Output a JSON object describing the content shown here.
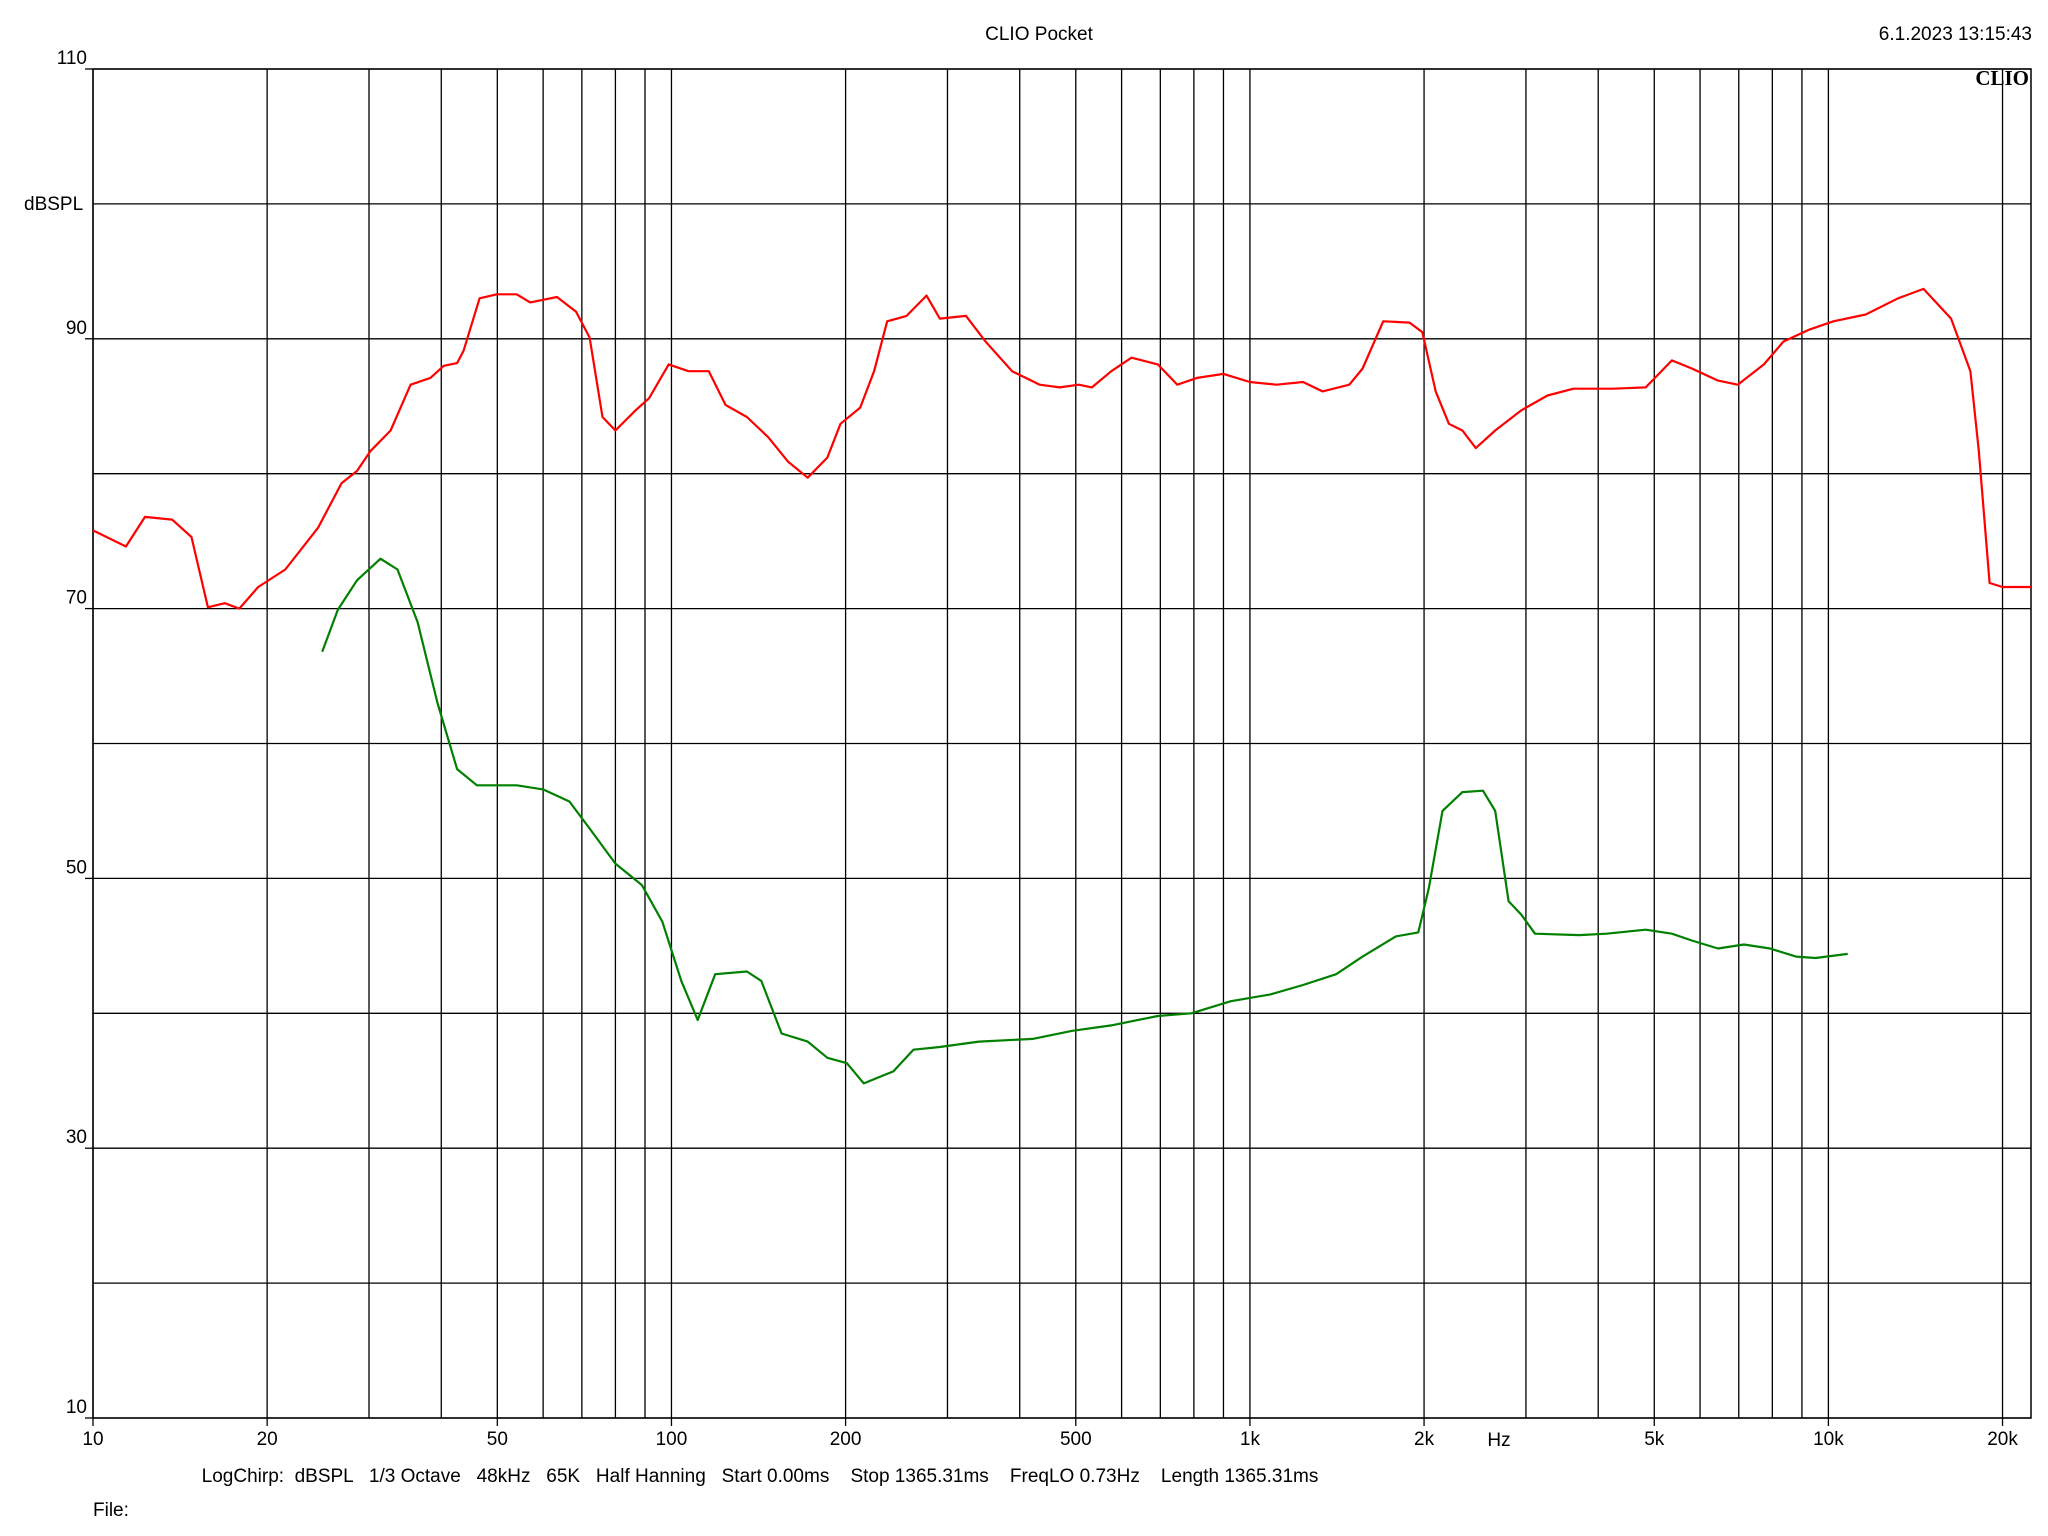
{
  "chart_data": {
    "type": "line",
    "title": "CLIO Pocket",
    "timestamp": "6.1.2023 13:15:43",
    "logo": "CLIO",
    "ylabel": "dBSPL",
    "xlabel": "Hz",
    "footer": "LogChirp:  dBSPL   1/3 Octave   48kHz   65K   Half Hanning   Start 0.00ms    Stop 1365.31ms    FreqLO 0.73Hz    Length 1365.31ms",
    "file_label": "File:",
    "xscale": "log",
    "xlim": [
      10,
      22400
    ],
    "ylim": [
      10,
      110
    ],
    "xticks": [
      10,
      20,
      50,
      100,
      200,
      500,
      {
        "value": 1000,
        "label": "1k"
      },
      {
        "value": 2000,
        "label": "2k"
      },
      {
        "value": 5000,
        "label": "5k"
      },
      {
        "value": 10000,
        "label": "10k"
      },
      {
        "value": 20000,
        "label": "20k"
      }
    ],
    "yticks": [
      10,
      30,
      50,
      70,
      90,
      110
    ],
    "xgrid": [
      10,
      20,
      30,
      40,
      50,
      60,
      70,
      80,
      90,
      100,
      200,
      300,
      400,
      500,
      600,
      700,
      800,
      900,
      1000,
      2000,
      3000,
      4000,
      5000,
      6000,
      7000,
      8000,
      9000,
      10000,
      20000
    ],
    "ygrid": [
      10,
      20,
      30,
      40,
      50,
      60,
      70,
      80,
      90,
      100,
      110
    ],
    "grid": true,
    "series": [
      {
        "color": "#ff0000",
        "x": [
          10,
          11.4,
          12.3,
          13.7,
          14.8,
          15.8,
          16.9,
          17.9,
          19.3,
          21.5,
          24.5,
          26.9,
          28.6,
          30.2,
          32.7,
          35.4,
          38.3,
          40.4,
          42.6,
          43.7,
          46.6,
          49.9,
          54,
          57,
          63.4,
          68.4,
          72.2,
          76,
          80,
          86.7,
          91.5,
          98.9,
          107,
          116,
          124,
          135,
          147,
          159,
          172,
          186,
          196,
          212,
          224,
          236,
          255,
          276,
          291,
          323,
          349,
          388,
          433,
          469,
          506,
          533,
          576,
          624,
          693,
          749,
          810,
          900,
          1000,
          1112,
          1235,
          1335,
          1485,
          1566,
          1700,
          1887,
          1986,
          2095,
          2208,
          2330,
          2457,
          2655,
          2946,
          3269,
          3626,
          4243,
          4833,
          5364,
          5806,
          6443,
          6972,
          7735,
          8364,
          9286,
          10200,
          11600,
          13200,
          14600,
          16300,
          17600,
          18200,
          19000,
          20000,
          22400
        ],
        "values": [
          75.8,
          74.6,
          76.8,
          76.6,
          75.3,
          70.1,
          70.4,
          70.0,
          71.6,
          72.9,
          76.0,
          79.3,
          80.2,
          81.7,
          83.2,
          86.6,
          87.1,
          88.0,
          88.2,
          89.1,
          93.0,
          93.3,
          93.3,
          92.7,
          93.1,
          92.0,
          90.1,
          84.2,
          83.2,
          84.7,
          85.6,
          88.1,
          87.6,
          87.6,
          85.1,
          84.2,
          82.7,
          80.9,
          79.7,
          81.2,
          83.7,
          84.9,
          87.6,
          91.3,
          91.7,
          93.2,
          91.5,
          91.7,
          89.8,
          87.6,
          86.6,
          86.4,
          86.6,
          86.4,
          87.6,
          88.6,
          88.1,
          86.6,
          87.1,
          87.4,
          86.8,
          86.6,
          86.8,
          86.1,
          86.6,
          87.8,
          91.3,
          91.2,
          90.5,
          86.1,
          83.7,
          83.2,
          81.9,
          83.2,
          84.7,
          85.8,
          86.3,
          86.3,
          86.4,
          88.4,
          87.8,
          86.9,
          86.6,
          88.1,
          89.8,
          90.7,
          91.3,
          91.8,
          93.0,
          93.7,
          91.5,
          87.6,
          81.7,
          71.9,
          71.6,
          71.6
        ]
      },
      {
        "color": "#008000",
        "x": [
          24.9,
          26.5,
          28.6,
          31.4,
          33.6,
          36.4,
          39.4,
          42.6,
          46.1,
          54,
          60,
          66.6,
          72.2,
          80,
          88.9,
          96.4,
          104,
          111,
          119,
          135,
          143,
          155,
          172,
          186,
          201,
          215,
          242,
          262,
          291,
          340,
          421,
          493,
          576,
          693,
          792,
          927,
          1085,
          1235,
          1410,
          1566,
          1787,
          1955,
          2039,
          2152,
          2330,
          2529,
          2655,
          2800,
          2946,
          3110,
          3712,
          4135,
          4833,
          5364,
          5806,
          6443,
          7143,
          7925,
          8795,
          9500,
          10800
        ],
        "values": [
          66.8,
          69.9,
          72.1,
          73.7,
          72.9,
          69.0,
          63.0,
          58.1,
          56.9,
          56.9,
          56.6,
          55.7,
          53.7,
          51.1,
          49.5,
          46.8,
          42.4,
          39.5,
          42.9,
          43.1,
          42.4,
          38.5,
          37.9,
          36.7,
          36.3,
          34.8,
          35.7,
          37.3,
          37.5,
          37.9,
          38.1,
          38.7,
          39.1,
          39.8,
          40.0,
          40.9,
          41.4,
          42.1,
          42.9,
          44.2,
          45.7,
          46.0,
          49.3,
          55.0,
          56.4,
          56.5,
          55.0,
          48.3,
          47.3,
          45.9,
          45.8,
          45.9,
          46.2,
          45.9,
          45.4,
          44.8,
          45.1,
          44.8,
          44.2,
          44.1,
          44.4
        ]
      }
    ]
  }
}
